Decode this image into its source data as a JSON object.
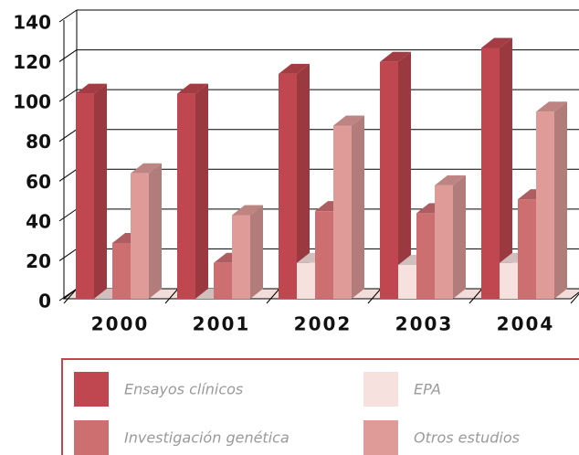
{
  "chart_data": {
    "type": "bar3d",
    "categories": [
      "2000",
      "2001",
      "2002",
      "2003",
      "2004"
    ],
    "series": [
      {
        "name": "Ensayos clínicos",
        "color": "#c0474f",
        "values": [
          103,
          103,
          113,
          119,
          126
        ]
      },
      {
        "name": "EPA",
        "color": "#f6e1de",
        "values": [
          0,
          0,
          18,
          17,
          18
        ]
      },
      {
        "name": "Investigación genética",
        "color": "#cd6f71",
        "values": [
          28,
          18,
          44,
          43,
          50
        ]
      },
      {
        "name": "Otros estudios",
        "color": "#de9b98",
        "values": [
          63,
          42,
          87,
          57,
          94
        ]
      }
    ],
    "ylim": [
      0,
      140
    ],
    "yticks": [
      0,
      20,
      40,
      60,
      80,
      100,
      120,
      140
    ],
    "grid": true
  }
}
